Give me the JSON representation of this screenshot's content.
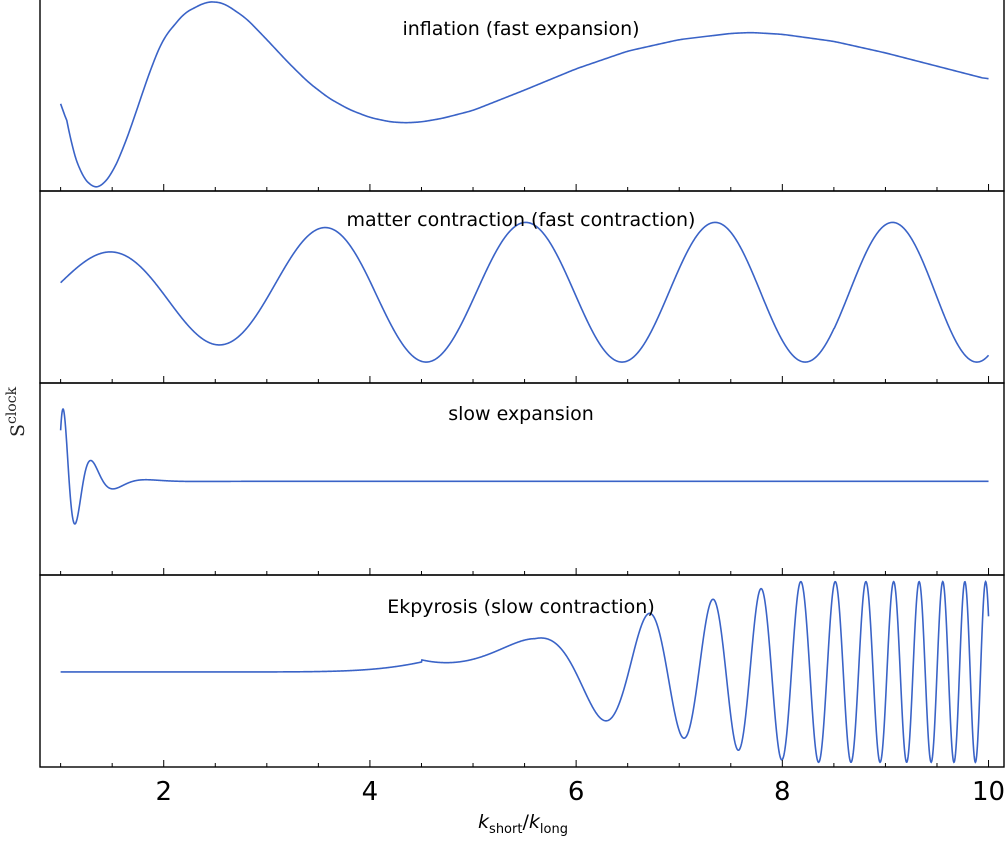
{
  "chart_data": {
    "type": "line",
    "xlabel": {
      "k1": "k",
      "sub1": "short",
      "slash": "/",
      "k2": "k",
      "sub2": "long"
    },
    "ylabel": {
      "base": "S",
      "sup": "clock"
    },
    "xlim": [
      0.8,
      10.15
    ],
    "xticks": [
      2,
      4,
      6,
      8,
      10
    ],
    "line_color": "#3a63c7",
    "panels": [
      {
        "title": "inflation (fast expansion)",
        "ylim": [
          -1.08,
          1.1
        ],
        "x": [
          1.0,
          1.1,
          1.2,
          1.3,
          1.35,
          1.4,
          1.5,
          1.6,
          1.7,
          1.8,
          1.9,
          2.0,
          2.2,
          2.4,
          2.5,
          2.6,
          2.8,
          3.0,
          3.2,
          3.4,
          3.6,
          3.8,
          4.0,
          4.2,
          4.35,
          4.5,
          4.7,
          5.0,
          5.5,
          6.0,
          6.5,
          7.0,
          7.5,
          7.7,
          8.0,
          8.5,
          9.0,
          9.5,
          10.0
        ],
        "y": [
          0.1,
          -0.55,
          -0.9,
          -1.03,
          -1.05,
          -1.02,
          -0.88,
          -0.62,
          -0.3,
          0.05,
          0.38,
          0.65,
          0.93,
          1.05,
          1.06,
          1.03,
          0.87,
          0.63,
          0.38,
          0.15,
          -0.03,
          -0.16,
          -0.25,
          -0.3,
          -0.31,
          -0.3,
          -0.26,
          -0.17,
          0.06,
          0.3,
          0.5,
          0.63,
          0.7,
          0.71,
          0.69,
          0.61,
          0.48,
          0.33,
          0.18
        ]
      },
      {
        "title": "matter contraction (fast contraction)",
        "ylim": [
          -1.2,
          1.55
        ],
        "period": [
          2.2,
          1.45
        ],
        "peak_first": 1.45,
        "amp": [
          0.55,
          1.0
        ],
        "baseline": 0.0
      },
      {
        "title": "slow expansion",
        "ylim": [
          -1.0,
          1.05
        ],
        "baseline": 0.0
      },
      {
        "title": "Ekpyrosis (slow contraction)",
        "ylim": [
          -1.0,
          1.02
        ],
        "baseline": 0.0
      }
    ]
  }
}
